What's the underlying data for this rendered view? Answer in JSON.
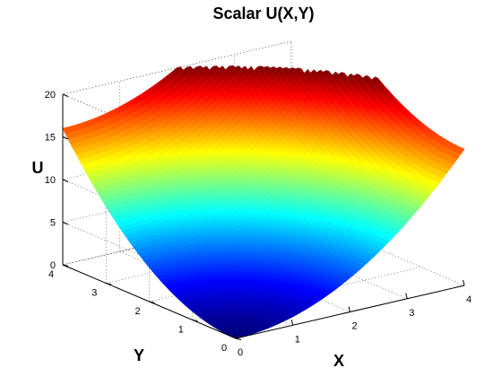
{
  "chart_data": {
    "type": "surface",
    "title": "Scalar U(X,Y)",
    "xlabel": "X",
    "ylabel": "Y",
    "zlabel": "U",
    "function": "U = X^2 + Y^2",
    "x": [
      0,
      0.25,
      0.5,
      0.75,
      1,
      1.25,
      1.5,
      1.75,
      2,
      2.25,
      2.5,
      2.75,
      3,
      3.25,
      3.5,
      3.75,
      4
    ],
    "y": [
      0,
      0.25,
      0.5,
      0.75,
      1,
      1.25,
      1.5,
      1.75,
      2,
      2.25,
      2.5,
      2.75,
      3,
      3.25,
      3.5,
      3.75,
      4
    ],
    "xlim": [
      0,
      4
    ],
    "ylim": [
      0,
      4
    ],
    "zlim": [
      0,
      20
    ],
    "clip_above": 20,
    "xticks": [
      "0",
      "1",
      "2",
      "3",
      "4"
    ],
    "yticks": [
      "0",
      "1",
      "2",
      "3",
      "4"
    ],
    "zticks": [
      "0",
      "5",
      "10",
      "15",
      "20"
    ],
    "colormap": "jet",
    "grid": true,
    "box": true
  }
}
